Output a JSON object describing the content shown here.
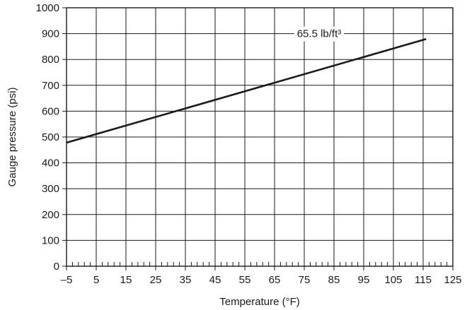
{
  "chart_data": {
    "type": "line",
    "title": "",
    "xlabel": "Temperature (°F)",
    "ylabel": "Gauge pressure (psi)",
    "xlim": [
      -5,
      125
    ],
    "ylim": [
      0,
      1000
    ],
    "x_ticks": [
      -5,
      5,
      15,
      25,
      35,
      45,
      55,
      65,
      75,
      85,
      95,
      105,
      115,
      125
    ],
    "x_tick_labels": [
      "–5",
      "5",
      "15",
      "25",
      "35",
      "45",
      "55",
      "65",
      "75",
      "85",
      "95",
      "105",
      "115",
      "125"
    ],
    "y_ticks": [
      0,
      100,
      200,
      300,
      400,
      500,
      600,
      700,
      800,
      900,
      1000
    ],
    "y_tick_labels": [
      "0",
      "100",
      "200",
      "300",
      "400",
      "500",
      "600",
      "700",
      "800",
      "900",
      "1000"
    ],
    "minor_x_step": 2,
    "grid": true,
    "series": [
      {
        "name": "65.5 lb/ft³",
        "x": [
          -5,
          116
        ],
        "y": [
          478,
          879
        ]
      }
    ],
    "annotation": {
      "text": "65.5 lb/ft³",
      "x": 80,
      "y": 900
    },
    "colors": {
      "line": "#1a1a1a",
      "grid": "#1a1a1a",
      "background": "#ffffff"
    }
  }
}
